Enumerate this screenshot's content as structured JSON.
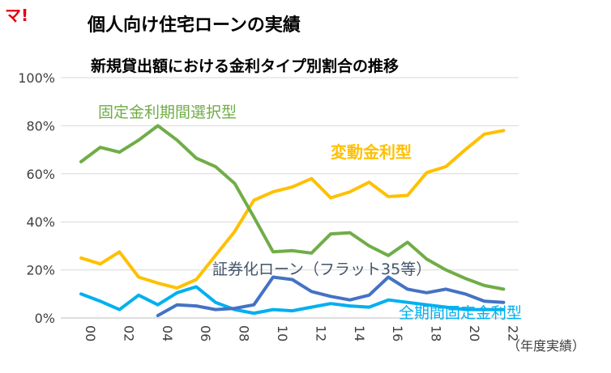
{
  "brand_mark": "マ!",
  "chart_data": {
    "type": "line",
    "title": "個人向け住宅ローンの実績",
    "subtitle": "新規貸出額における金利タイプ別割合の推移",
    "x_note": "（年度実績）",
    "categories": [
      "00",
      "01",
      "02",
      "03",
      "04",
      "05",
      "06",
      "07",
      "08",
      "09",
      "10",
      "11",
      "12",
      "13",
      "14",
      "15",
      "16",
      "17",
      "18",
      "19",
      "20",
      "21",
      "22"
    ],
    "x_tick_labels": [
      "00",
      "02",
      "04",
      "06",
      "08",
      "10",
      "12",
      "14",
      "16",
      "18",
      "20",
      "22"
    ],
    "y_tick_labels": [
      "0%",
      "20%",
      "40%",
      "60%",
      "80%",
      "100%"
    ],
    "ylim": [
      0,
      100
    ],
    "grid": true,
    "series": [
      {
        "name": "固定金利期間選択型",
        "color": "#70ad47",
        "values": [
          65,
          71,
          69,
          74,
          80,
          74,
          66.5,
          63,
          56,
          42,
          27.5,
          28,
          27,
          35,
          35.5,
          30,
          26,
          31.5,
          24.5,
          20,
          16.5,
          13.5,
          12
        ]
      },
      {
        "name": "変動金利型",
        "color": "#ffc000",
        "values": [
          25,
          22.5,
          27.5,
          17,
          14.5,
          12.5,
          16,
          26,
          36,
          49,
          52.5,
          54.5,
          58,
          50,
          52.5,
          56.5,
          50.5,
          51,
          60.5,
          63,
          70,
          76.5,
          78
        ]
      },
      {
        "name": "証券化ローン（フラット35等）",
        "color": "#4472c4",
        "values": [
          null,
          null,
          null,
          null,
          1,
          5.5,
          5,
          3.5,
          4,
          5.5,
          17,
          16,
          11,
          9,
          7.5,
          9.5,
          17,
          12,
          10.5,
          12,
          10,
          7,
          6.5
        ]
      },
      {
        "name": "全期間固定金利型",
        "color": "#00b0f0",
        "values": [
          10,
          7,
          3.5,
          9.5,
          5.5,
          10.5,
          13,
          6.5,
          3.5,
          2,
          3.5,
          3,
          4.5,
          6,
          5,
          4.5,
          7.5,
          6.5,
          5.5,
          4.5,
          3.5,
          3.5,
          3.5
        ]
      }
    ]
  }
}
